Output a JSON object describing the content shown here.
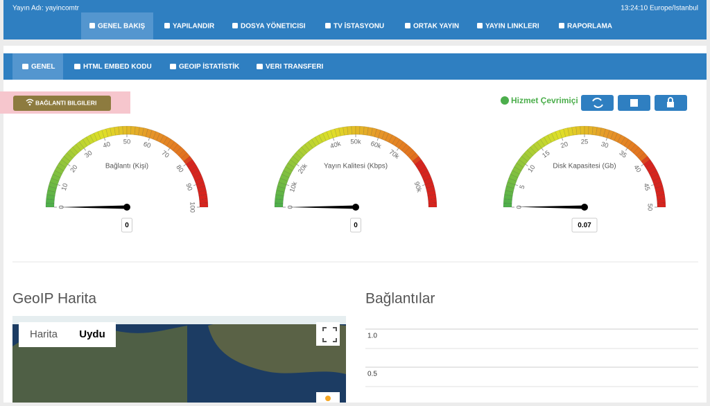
{
  "header": {
    "stream_name": "Yayın Adı: yayincomtr",
    "clock": "13:24:10 Europe/Istanbul"
  },
  "nav": [
    "GENEL BAKIŞ",
    "YAPILANDIR",
    "DOSYA YÖNETICISI",
    "TV İSTASYONU",
    "ORTAK YAYIN",
    "YAYIN LINKLERI",
    "RAPORLAMA"
  ],
  "subnav": [
    "GENEL",
    "HTML EMBED KODU",
    "GEOIP İSTATİSTİK",
    "VERI TRANSFERI"
  ],
  "connection_button": "BAĞLANTI BILGILERI",
  "status": "Hizmet Çevrimiçi",
  "gauges": [
    {
      "title": "Bağlantı (Kişi)",
      "range": [
        0,
        100
      ],
      "ticks": [
        0,
        10,
        20,
        30,
        40,
        50,
        60,
        70,
        80,
        90,
        100
      ],
      "value": 0
    },
    {
      "title": "Yayın Kalitesi (Kbps)",
      "range": [
        0,
        100000
      ],
      "ticks": [
        0,
        {
          "value": 10000,
          "label": "10k"
        },
        {
          "value": 20000,
          "label": "20k"
        },
        {
          "value": 40000,
          "label": "40k"
        },
        {
          "value": 50000,
          "label": "50k"
        },
        {
          "value": 60000,
          "label": "60k"
        },
        {
          "value": 70000,
          "label": "70k"
        },
        {
          "value": 90000,
          "label": "90k"
        }
      ],
      "value": 0
    },
    {
      "title": "Disk Kapasitesi (Gb)",
      "range": [
        0,
        50
      ],
      "ticks": [
        0,
        5,
        10,
        15,
        20,
        25,
        30,
        35,
        40,
        45,
        50
      ],
      "value": 0.07
    }
  ],
  "map": {
    "title": "GeoIP Harita",
    "tabs": [
      "Harita",
      "Uydu"
    ]
  },
  "connections": {
    "title": "Bağlantılar",
    "ylim": [
      0,
      1
    ],
    "yticks": [
      {
        "value": 1,
        "label": "1.0"
      },
      {
        "value": 0.5,
        "label": "0.5"
      }
    ]
  }
}
